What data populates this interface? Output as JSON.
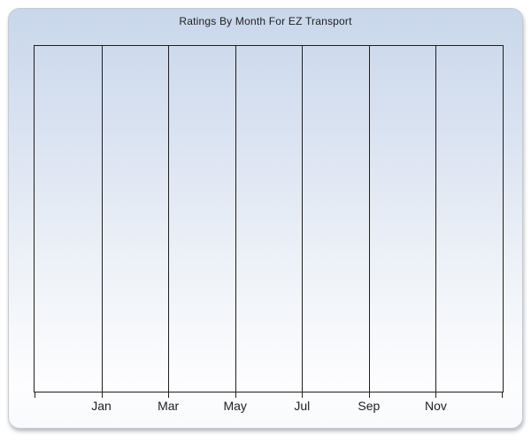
{
  "chart_data": {
    "type": "line",
    "title": "Ratings By Month For EZ Transport",
    "categories": [
      "Jan",
      "Mar",
      "May",
      "Jul",
      "Sep",
      "Nov"
    ],
    "series": [],
    "xlabel": "",
    "ylabel": "",
    "x_divisions": 7,
    "grid": "vertical-gridlines-only",
    "legend": "none",
    "plot_is_empty": true
  },
  "colors": {
    "panel_gradient_top": "#c9d7eb",
    "panel_gradient_bottom": "#fdfdfe",
    "panel_border": "#c6cad1",
    "axis_line": "#1f1f1f",
    "text": "#1e1e1e"
  }
}
